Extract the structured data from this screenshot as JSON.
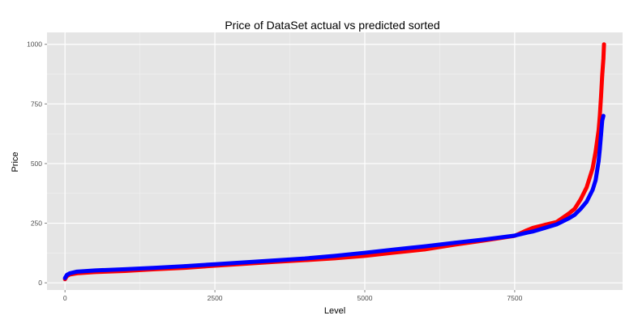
{
  "chart_data": {
    "type": "scatter",
    "title": "Price of DataSet actual vs predicted sorted",
    "xlabel": "Level",
    "ylabel": "Price",
    "xlim": [
      -300,
      9300
    ],
    "ylim": [
      -30,
      1050
    ],
    "x_ticks": [
      0,
      2500,
      5000,
      7500
    ],
    "x_tick_labels": [
      "0",
      "2500",
      "5000",
      "7500"
    ],
    "y_ticks": [
      0,
      250,
      500,
      750,
      1000
    ],
    "y_tick_labels": [
      "0",
      "250",
      "500",
      "750",
      "1000"
    ],
    "grid": true,
    "legend": "none",
    "series": [
      {
        "color": "#ff0000",
        "points": [
          [
            0,
            15
          ],
          [
            30,
            28
          ],
          [
            80,
            35
          ],
          [
            200,
            40
          ],
          [
            500,
            45
          ],
          [
            1000,
            50
          ],
          [
            1500,
            57
          ],
          [
            2000,
            63
          ],
          [
            2500,
            72
          ],
          [
            3000,
            80
          ],
          [
            3500,
            88
          ],
          [
            4000,
            95
          ],
          [
            4500,
            103
          ],
          [
            5000,
            113
          ],
          [
            5500,
            127
          ],
          [
            6000,
            140
          ],
          [
            6500,
            160
          ],
          [
            7000,
            178
          ],
          [
            7500,
            197
          ],
          [
            7700,
            220
          ],
          [
            7800,
            230
          ],
          [
            8000,
            243
          ],
          [
            8200,
            255
          ],
          [
            8400,
            290
          ],
          [
            8500,
            310
          ],
          [
            8600,
            350
          ],
          [
            8700,
            400
          ],
          [
            8800,
            480
          ],
          [
            8850,
            550
          ],
          [
            8900,
            640
          ],
          [
            8920,
            700
          ],
          [
            8940,
            780
          ],
          [
            8960,
            870
          ],
          [
            8980,
            940
          ],
          [
            8990,
            1000
          ]
        ]
      },
      {
        "color": "#0000ff",
        "points": [
          [
            0,
            20
          ],
          [
            30,
            33
          ],
          [
            80,
            40
          ],
          [
            200,
            47
          ],
          [
            500,
            52
          ],
          [
            1000,
            57
          ],
          [
            1500,
            63
          ],
          [
            2000,
            70
          ],
          [
            2500,
            78
          ],
          [
            3000,
            86
          ],
          [
            3500,
            94
          ],
          [
            4000,
            102
          ],
          [
            4500,
            113
          ],
          [
            5000,
            126
          ],
          [
            5500,
            140
          ],
          [
            6000,
            153
          ],
          [
            6500,
            168
          ],
          [
            7000,
            182
          ],
          [
            7500,
            198
          ],
          [
            7700,
            210
          ],
          [
            7800,
            215
          ],
          [
            8000,
            230
          ],
          [
            8200,
            245
          ],
          [
            8400,
            270
          ],
          [
            8500,
            285
          ],
          [
            8600,
            310
          ],
          [
            8700,
            340
          ],
          [
            8800,
            390
          ],
          [
            8850,
            430
          ],
          [
            8900,
            510
          ],
          [
            8920,
            560
          ],
          [
            8940,
            620
          ],
          [
            8960,
            680
          ],
          [
            8980,
            700
          ]
        ]
      }
    ]
  }
}
